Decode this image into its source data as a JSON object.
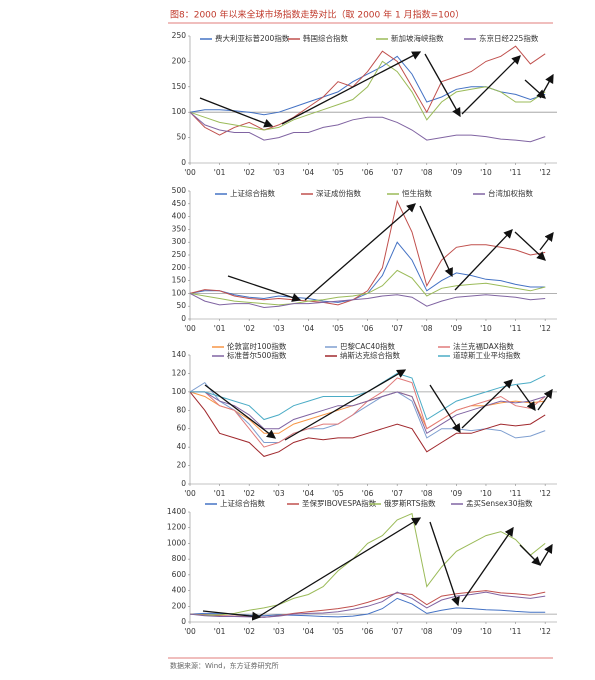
{
  "title": "图8：2000 年以来全球市场指数走势对比（取 2000 年 1 月指数=100）",
  "source": "数据来源：Wind，东方证券研究所",
  "chart_data": [
    {
      "type": "line",
      "xlim": [
        2000,
        2012.4
      ],
      "ylim": [
        0,
        250
      ],
      "yticks": [
        0,
        50,
        100,
        150,
        200,
        250
      ],
      "hline": 100,
      "xticks": [
        {
          "value": 2000,
          "label": "'00"
        },
        {
          "value": 2001,
          "label": "'01"
        },
        {
          "value": 2002,
          "label": "'02"
        },
        {
          "value": 2003,
          "label": "'03"
        },
        {
          "value": 2004,
          "label": "'04"
        },
        {
          "value": 2005,
          "label": "'05"
        },
        {
          "value": 2006,
          "label": "'06"
        },
        {
          "value": 2007,
          "label": "'07"
        },
        {
          "value": 2008,
          "label": "'08"
        },
        {
          "value": 2009,
          "label": "'09"
        },
        {
          "value": 2010,
          "label": "'10"
        },
        {
          "value": 2011,
          "label": "'11"
        },
        {
          "value": 2012,
          "label": "'12"
        }
      ],
      "x": [
        2000,
        2000.5,
        2001,
        2001.5,
        2002,
        2002.5,
        2003,
        2003.5,
        2004,
        2004.5,
        2005,
        2005.5,
        2006,
        2006.5,
        2007,
        2007.5,
        2008,
        2008.5,
        2009,
        2009.5,
        2010,
        2010.5,
        2011,
        2011.5,
        2012
      ],
      "series": [
        {
          "name": "费大利亚标普200指数",
          "color": "#4472c4",
          "values": [
            100,
            105,
            105,
            103,
            100,
            95,
            100,
            110,
            120,
            130,
            140,
            160,
            175,
            190,
            210,
            175,
            120,
            130,
            145,
            150,
            150,
            140,
            135,
            125,
            135
          ]
        },
        {
          "name": "韩国综合指数",
          "color": "#c0504d",
          "values": [
            100,
            70,
            55,
            70,
            80,
            65,
            75,
            90,
            110,
            130,
            160,
            150,
            180,
            220,
            200,
            150,
            100,
            160,
            170,
            180,
            200,
            210,
            230,
            195,
            215
          ]
        },
        {
          "name": "新加坡海峡指数",
          "color": "#9bbb59",
          "values": [
            100,
            90,
            80,
            75,
            70,
            65,
            70,
            85,
            95,
            105,
            115,
            125,
            150,
            200,
            180,
            140,
            85,
            120,
            140,
            145,
            150,
            140,
            120,
            120,
            140
          ]
        },
        {
          "name": "东京日经225指数",
          "color": "#8064a2",
          "values": [
            100,
            75,
            65,
            60,
            60,
            45,
            50,
            60,
            60,
            70,
            75,
            85,
            90,
            90,
            80,
            65,
            45,
            50,
            55,
            55,
            52,
            47,
            45,
            42,
            52
          ]
        }
      ]
    },
    {
      "type": "line",
      "xlim": [
        2000,
        2012.4
      ],
      "ylim": [
        0,
        500
      ],
      "yticks": [
        0,
        50,
        100,
        150,
        200,
        250,
        300,
        350,
        400,
        450,
        500
      ],
      "hline": 100,
      "xticks": [
        {
          "value": 2000,
          "label": "'00"
        },
        {
          "value": 2001,
          "label": "'01"
        },
        {
          "value": 2002,
          "label": "'02"
        },
        {
          "value": 2003,
          "label": "'03"
        },
        {
          "value": 2004,
          "label": "'04"
        },
        {
          "value": 2005,
          "label": "'05"
        },
        {
          "value": 2006,
          "label": "'06"
        },
        {
          "value": 2007,
          "label": "'07"
        },
        {
          "value": 2008,
          "label": "'08"
        },
        {
          "value": 2009,
          "label": "'09"
        },
        {
          "value": 2010,
          "label": "'10"
        },
        {
          "value": 2011,
          "label": "'11"
        },
        {
          "value": 2012,
          "label": "'12"
        }
      ],
      "x": [
        2000,
        2000.5,
        2001,
        2001.5,
        2002,
        2002.5,
        2003,
        2003.5,
        2004,
        2004.5,
        2005,
        2005.5,
        2006,
        2006.5,
        2007,
        2007.5,
        2008,
        2008.5,
        2009,
        2009.5,
        2010,
        2010.5,
        2011,
        2011.5,
        2012
      ],
      "series": [
        {
          "name": "上证综合指数",
          "color": "#4472c4",
          "values": [
            100,
            110,
            110,
            95,
            85,
            80,
            90,
            85,
            80,
            70,
            65,
            75,
            100,
            170,
            300,
            230,
            110,
            150,
            180,
            170,
            155,
            150,
            135,
            125,
            125
          ]
        },
        {
          "name": "深证成份指数",
          "color": "#c0504d",
          "values": [
            100,
            115,
            110,
            90,
            80,
            75,
            80,
            75,
            70,
            65,
            55,
            75,
            110,
            200,
            460,
            340,
            130,
            230,
            280,
            290,
            290,
            280,
            270,
            250,
            260
          ]
        },
        {
          "name": "恒生指数",
          "color": "#9bbb59",
          "values": [
            100,
            90,
            80,
            70,
            65,
            60,
            55,
            60,
            70,
            75,
            85,
            90,
            100,
            130,
            190,
            160,
            90,
            120,
            130,
            135,
            140,
            130,
            120,
            110,
            125
          ]
        },
        {
          "name": "台湾加权指数",
          "color": "#8064a2",
          "values": [
            100,
            70,
            55,
            60,
            60,
            45,
            50,
            60,
            60,
            65,
            70,
            75,
            80,
            90,
            95,
            85,
            50,
            70,
            85,
            90,
            95,
            90,
            85,
            75,
            80
          ]
        }
      ]
    },
    {
      "type": "line",
      "xlim": [
        2000,
        2012.4
      ],
      "ylim": [
        0,
        140
      ],
      "yticks": [
        0,
        20,
        40,
        60,
        80,
        100,
        120,
        140
      ],
      "hline": 100,
      "xticks": [
        {
          "value": 2000,
          "label": "'00"
        },
        {
          "value": 2001,
          "label": "'01"
        },
        {
          "value": 2002,
          "label": "'02"
        },
        {
          "value": 2003,
          "label": "'03"
        },
        {
          "value": 2004,
          "label": "'04"
        },
        {
          "value": 2005,
          "label": "'05"
        },
        {
          "value": 2006,
          "label": "'06"
        },
        {
          "value": 2007,
          "label": "'07"
        },
        {
          "value": 2008,
          "label": "'08"
        },
        {
          "value": 2009,
          "label": "'09"
        },
        {
          "value": 2010,
          "label": "'10"
        },
        {
          "value": 2011,
          "label": "'11"
        },
        {
          "value": 2012,
          "label": "'12"
        }
      ],
      "x": [
        2000,
        2000.5,
        2001,
        2001.5,
        2002,
        2002.5,
        2003,
        2003.5,
        2004,
        2004.5,
        2005,
        2005.5,
        2006,
        2006.5,
        2007,
        2007.5,
        2008,
        2008.5,
        2009,
        2009.5,
        2010,
        2010.5,
        2011,
        2011.5,
        2012
      ],
      "series": [
        {
          "name": "伦敦富时100指数",
          "color": "#f79646",
          "values": [
            100,
            95,
            85,
            80,
            70,
            55,
            55,
            65,
            70,
            75,
            80,
            85,
            90,
            95,
            100,
            95,
            60,
            70,
            80,
            85,
            85,
            88,
            90,
            88,
            90
          ]
        },
        {
          "name": "巴黎CAC40指数",
          "color": "#7f9fd0",
          "values": [
            100,
            110,
            90,
            80,
            65,
            45,
            45,
            55,
            60,
            60,
            65,
            75,
            85,
            95,
            100,
            90,
            50,
            60,
            60,
            58,
            60,
            58,
            50,
            52,
            58
          ]
        },
        {
          "name": "法兰克福DAX指数",
          "color": "#e07a7a",
          "values": [
            100,
            100,
            85,
            80,
            60,
            40,
            45,
            55,
            60,
            65,
            65,
            75,
            90,
            100,
            115,
            110,
            60,
            70,
            80,
            85,
            90,
            95,
            85,
            82,
            95
          ]
        },
        {
          "name": "标准普尔500指数",
          "color": "#8064a2",
          "values": [
            100,
            100,
            90,
            85,
            75,
            60,
            60,
            70,
            75,
            80,
            85,
            85,
            90,
            95,
            100,
            95,
            55,
            65,
            75,
            80,
            85,
            90,
            88,
            90,
            95
          ]
        },
        {
          "name": "纳斯达克综合指数",
          "color": "#a0282d",
          "values": [
            100,
            80,
            55,
            50,
            45,
            30,
            35,
            45,
            50,
            48,
            50,
            50,
            55,
            60,
            65,
            60,
            35,
            45,
            55,
            55,
            60,
            65,
            63,
            65,
            75
          ]
        },
        {
          "name": "道琼斯工业平均指数",
          "color": "#4bacc6",
          "values": [
            100,
            100,
            95,
            90,
            85,
            70,
            75,
            85,
            90,
            95,
            95,
            95,
            100,
            110,
            120,
            115,
            70,
            80,
            90,
            95,
            100,
            105,
            108,
            110,
            118
          ]
        }
      ]
    },
    {
      "type": "line",
      "xlim": [
        2000,
        2012.4
      ],
      "ylim": [
        0,
        1400
      ],
      "yticks": [
        0,
        200,
        400,
        600,
        800,
        1000,
        1200,
        1400
      ],
      "hline": 100,
      "xticks": [
        {
          "value": 2000,
          "label": "'00"
        },
        {
          "value": 2001,
          "label": "'01"
        },
        {
          "value": 2002,
          "label": "'02"
        },
        {
          "value": 2003,
          "label": "'03"
        },
        {
          "value": 2004,
          "label": "'04"
        },
        {
          "value": 2005,
          "label": "'05"
        },
        {
          "value": 2006,
          "label": "'06"
        },
        {
          "value": 2007,
          "label": "'07"
        },
        {
          "value": 2008,
          "label": "'08"
        },
        {
          "value": 2009,
          "label": "'09"
        },
        {
          "value": 2010,
          "label": "'10"
        },
        {
          "value": 2011,
          "label": "'11"
        },
        {
          "value": 2012,
          "label": "'12"
        }
      ],
      "x": [
        2000,
        2000.5,
        2001,
        2001.5,
        2002,
        2002.5,
        2003,
        2003.5,
        2004,
        2004.5,
        2005,
        2005.5,
        2006,
        2006.5,
        2007,
        2007.5,
        2008,
        2008.5,
        2009,
        2009.5,
        2010,
        2010.5,
        2011,
        2011.5,
        2012
      ],
      "series": [
        {
          "name": "上证综合指数",
          "color": "#4472c4",
          "values": [
            100,
            110,
            110,
            95,
            85,
            80,
            90,
            85,
            80,
            70,
            65,
            75,
            100,
            170,
            300,
            230,
            110,
            150,
            180,
            170,
            155,
            150,
            135,
            125,
            125
          ]
        },
        {
          "name": "圣保罗IBOVESPA指数",
          "color": "#c0504d",
          "values": [
            100,
            90,
            80,
            75,
            70,
            60,
            80,
            110,
            130,
            150,
            170,
            200,
            250,
            310,
            370,
            350,
            220,
            330,
            360,
            380,
            400,
            370,
            360,
            340,
            380
          ]
        },
        {
          "name": "俄罗斯RTS指数",
          "color": "#9bbb59",
          "values": [
            100,
            85,
            90,
            110,
            150,
            180,
            220,
            300,
            350,
            450,
            650,
            800,
            1000,
            1100,
            1300,
            1380,
            450,
            700,
            900,
            1000,
            1100,
            1150,
            1050,
            850,
            1000
          ]
        },
        {
          "name": "孟买Sensex30指数",
          "color": "#8064a2",
          "values": [
            100,
            80,
            70,
            70,
            65,
            60,
            75,
            100,
            110,
            115,
            130,
            160,
            200,
            260,
            380,
            300,
            180,
            280,
            330,
            350,
            380,
            340,
            320,
            300,
            330
          ]
        }
      ]
    }
  ]
}
